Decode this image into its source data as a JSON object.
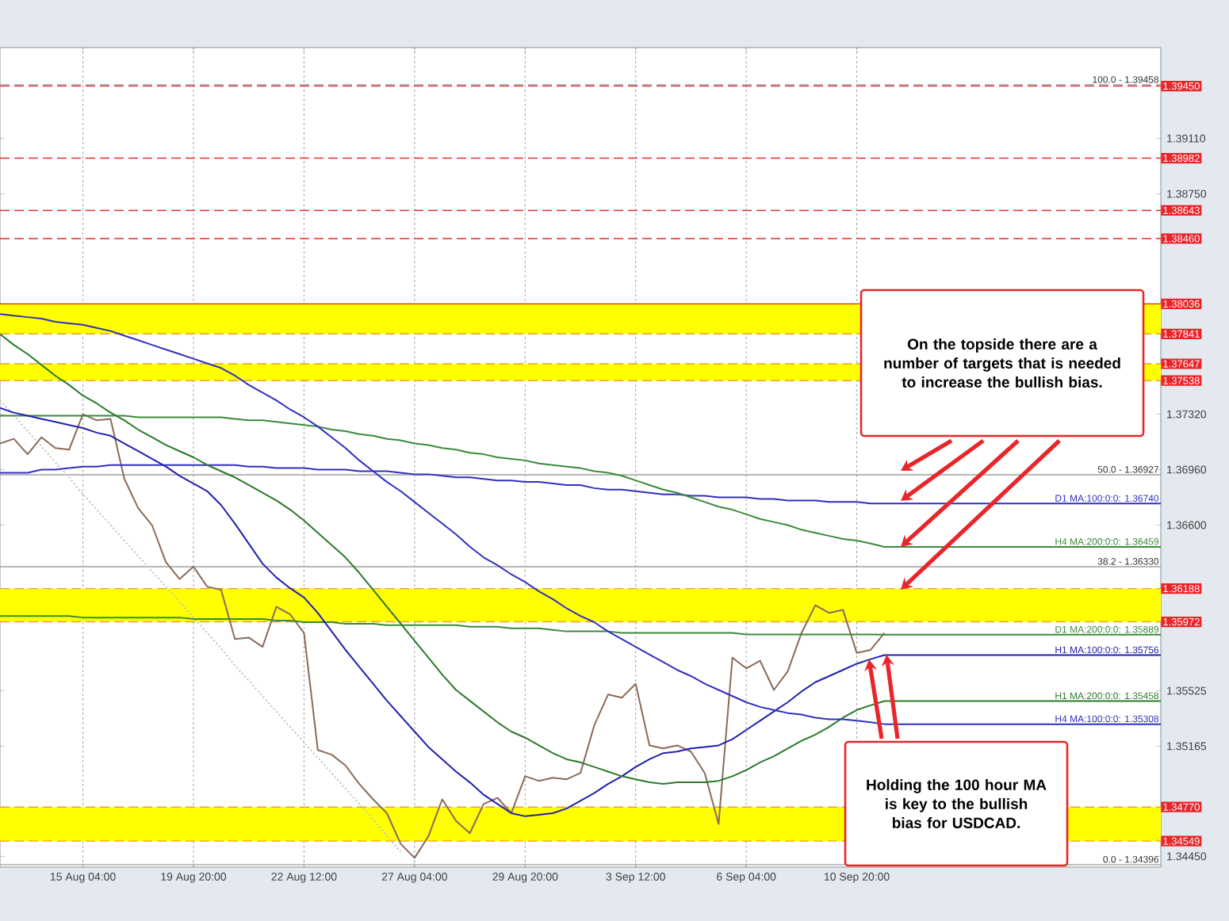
{
  "chart_data": {
    "type": "line",
    "categories": [
      null,
      null,
      null,
      null,
      null,
      null,
      "15 Aug 04:00",
      null,
      null,
      null,
      null,
      null,
      null,
      null,
      "19 Aug 20:00",
      null,
      null,
      null,
      null,
      null,
      null,
      null,
      "22 Aug 12:00",
      null,
      null,
      null,
      null,
      null,
      null,
      null,
      "27 Aug 04:00",
      null,
      null,
      null,
      null,
      null,
      null,
      null,
      "29 Aug 20:00",
      null,
      null,
      null,
      null,
      null,
      null,
      null,
      "3 Sep 12:00",
      null,
      null,
      null,
      null,
      null,
      null,
      null,
      "6 Sep 04:00",
      null,
      null,
      null,
      null,
      null,
      null,
      null,
      "10 Sep 20:00",
      null,
      null,
      null,
      null,
      null,
      null,
      null,
      null,
      null,
      null,
      null,
      null,
      null,
      null,
      null,
      null,
      null,
      null,
      null,
      null,
      null,
      null
    ],
    "ylim": [
      1.3438,
      1.397
    ],
    "yticks": [
      {
        "value": 1.3911,
        "label": "1.39110"
      },
      {
        "value": 1.3875,
        "label": "1.38750"
      },
      {
        "value": 1.3732,
        "label": "1.37320"
      },
      {
        "value": 1.3696,
        "label": "1.36960"
      },
      {
        "value": 1.366,
        "label": "1.36600"
      },
      {
        "value": 1.35525,
        "label": "1.35525"
      },
      {
        "value": 1.35165,
        "label": "1.35165"
      },
      {
        "value": 1.3445,
        "label": "1.34450"
      }
    ],
    "grid": "x",
    "bands": [
      {
        "axis": "y",
        "from": 1.37841,
        "to": 1.38036,
        "color": "#ffff00"
      },
      {
        "axis": "y",
        "from": 1.37538,
        "to": 1.37647,
        "color": "#ffff00"
      },
      {
        "axis": "y",
        "from": 1.35972,
        "to": 1.36188,
        "color": "#ffff00"
      },
      {
        "axis": "y",
        "from": 1.34549,
        "to": 1.3477,
        "color": "#ffff00"
      }
    ],
    "ref_lines": [
      {
        "axis": "y",
        "value": 1.3945,
        "label": "1.39450",
        "color": "#e03030",
        "line_style": "dashed"
      },
      {
        "axis": "y",
        "value": 1.38982,
        "label": "1.38982",
        "color": "#e03030",
        "line_style": "dashed"
      },
      {
        "axis": "y",
        "value": 1.38643,
        "label": "1.38643",
        "color": "#e03030",
        "line_style": "dashed"
      },
      {
        "axis": "y",
        "value": 1.3846,
        "label": "1.38460",
        "color": "#e03030",
        "line_style": "dashed"
      },
      {
        "axis": "y",
        "value": 1.38036,
        "label": "1.38036",
        "color": "#e02020",
        "line_style": "solid"
      },
      {
        "axis": "y",
        "value": 1.37841,
        "label": "1.37841",
        "color": "#e8a030",
        "line_style": "dashed"
      },
      {
        "axis": "y",
        "value": 1.37647,
        "label": "1.37647",
        "color": "#e8a030",
        "line_style": "dashed"
      },
      {
        "axis": "y",
        "value": 1.37538,
        "label": "1.37538",
        "color": "#e8a030",
        "line_style": "dashed"
      },
      {
        "axis": "y",
        "value": 1.36188,
        "label": "1.36188",
        "color": "#e8a030",
        "line_style": "dashed"
      },
      {
        "axis": "y",
        "value": 1.35972,
        "label": "1.35972",
        "color": "#e8a030",
        "line_style": "dashed"
      },
      {
        "axis": "y",
        "value": 1.3477,
        "label": "1.34770",
        "color": "#e8a030",
        "line_style": "dashed"
      },
      {
        "axis": "y",
        "value": 1.34549,
        "label": "1.34549",
        "color": "#e8a030",
        "line_style": "dashed"
      },
      {
        "axis": "y",
        "value": 1.39458,
        "color": "#a0a0a0",
        "line_style": "dashed"
      },
      {
        "axis": "y",
        "value": 1.36927,
        "color": "#a0a0a0",
        "line_style": "solid"
      },
      {
        "axis": "y",
        "value": 1.3633,
        "color": "#a0a0a0",
        "line_style": "solid"
      },
      {
        "axis": "y",
        "value": 1.34396,
        "color": "#a0a0a0",
        "line_style": "solid"
      }
    ],
    "series": [
      {
        "color": "#c0c0c0",
        "line_style": "dotted",
        "values": [
          1.3741,
          1.3731,
          1.3721,
          1.3711,
          1.3701,
          1.3691,
          1.368,
          1.367,
          1.366,
          1.365,
          1.364,
          1.363,
          1.362,
          1.361,
          1.36,
          1.359,
          1.358,
          1.3569,
          1.3559,
          1.3549,
          1.3539,
          1.3529,
          1.3519,
          1.3509,
          1.3499,
          1.3489,
          1.3479,
          1.3469,
          1.3458,
          1.3448,
          null,
          null,
          null,
          null,
          null,
          null,
          null,
          null,
          null,
          null,
          null,
          null,
          null,
          null,
          null,
          null,
          null,
          null,
          null,
          null,
          null,
          null,
          null,
          null,
          null,
          null,
          null,
          null,
          null,
          null,
          null,
          null,
          null,
          null,
          null,
          null,
          null,
          null,
          null,
          null,
          null,
          null,
          null,
          null,
          null,
          null,
          null,
          null,
          null,
          null,
          null,
          null,
          null,
          null,
          null
        ]
      },
      {
        "color": "#8a6a5a",
        "values": [
          1.3713,
          1.3716,
          1.3706,
          1.3717,
          1.371,
          1.3709,
          1.3732,
          1.3728,
          1.3729,
          1.369,
          1.3671,
          1.366,
          1.3636,
          1.3625,
          1.3633,
          1.362,
          1.3618,
          1.3586,
          1.3587,
          1.3581,
          1.3607,
          1.3602,
          1.359,
          1.3514,
          1.3511,
          1.3504,
          1.3492,
          1.3482,
          1.3473,
          1.3453,
          1.3444,
          1.3458,
          1.3482,
          1.3468,
          1.346,
          1.3479,
          1.3483,
          1.3473,
          1.3497,
          1.3494,
          1.3496,
          1.3495,
          1.3499,
          1.353,
          1.355,
          1.3548,
          1.3557,
          1.3517,
          1.3515,
          1.3517,
          1.3513,
          1.3499,
          1.3466,
          1.3574,
          1.3567,
          1.3572,
          1.3553,
          1.3565,
          1.359,
          1.3608,
          1.3603,
          1.3605,
          1.3577,
          1.3579,
          1.359,
          null,
          null,
          null,
          null,
          null,
          null,
          null,
          null,
          null,
          null,
          null,
          null,
          null,
          null,
          null,
          null,
          null,
          null,
          null,
          null
        ]
      },
      {
        "name": "D1 MA:100:0:0: 1.36740",
        "color": "#3030c0",
        "values": [
          1.3694,
          1.3694,
          1.3694,
          1.3696,
          1.3696,
          1.3697,
          1.3698,
          1.3698,
          1.3699,
          1.3699,
          1.3699,
          1.3699,
          1.3699,
          1.3699,
          1.3699,
          1.3699,
          1.3699,
          1.3699,
          1.3698,
          1.3698,
          1.3697,
          1.3697,
          1.3697,
          1.3696,
          1.3696,
          1.3696,
          1.3695,
          1.3695,
          1.3695,
          1.3694,
          1.3693,
          1.3693,
          1.3692,
          1.3691,
          1.3691,
          1.369,
          1.3689,
          1.3689,
          1.3688,
          1.3688,
          1.3687,
          1.3686,
          1.3686,
          1.3684,
          1.3683,
          1.3683,
          1.3682,
          1.3681,
          1.368,
          1.368,
          1.3679,
          1.3679,
          1.3678,
          1.3678,
          1.3678,
          1.3677,
          1.3677,
          1.3676,
          1.3676,
          1.3676,
          1.3675,
          1.3675,
          1.3675,
          1.3674,
          1.3674,
          1.3674,
          1.3674,
          1.3674,
          1.3674,
          1.3674,
          1.3674,
          1.3674,
          1.3674,
          1.3674,
          1.3674,
          1.3674,
          1.3674,
          1.3674,
          1.3674,
          1.3674,
          1.3674,
          1.3674,
          1.3674,
          1.3674,
          1.3674
        ]
      },
      {
        "name": "H4 MA:200:0:0: 1.36459",
        "color": "#3a8a3a",
        "values": [
          1.3731,
          1.3731,
          1.3731,
          1.3731,
          1.3731,
          1.3731,
          1.3731,
          1.3731,
          1.3731,
          1.3731,
          1.373,
          1.373,
          1.373,
          1.373,
          1.373,
          1.373,
          1.373,
          1.3729,
          1.3728,
          1.3728,
          1.3727,
          1.3726,
          1.3725,
          1.3724,
          1.3722,
          1.3721,
          1.3719,
          1.3718,
          1.3716,
          1.3715,
          1.3713,
          1.3712,
          1.371,
          1.3709,
          1.3707,
          1.3706,
          1.3704,
          1.3703,
          1.3702,
          1.37,
          1.3699,
          1.3698,
          1.3697,
          1.3695,
          1.3694,
          1.3692,
          1.3689,
          1.3686,
          1.3683,
          1.3681,
          1.3678,
          1.3675,
          1.3672,
          1.367,
          1.3667,
          1.3664,
          1.3662,
          1.366,
          1.3657,
          1.3655,
          1.3653,
          1.3651,
          1.365,
          1.3648,
          1.36459,
          1.36459,
          1.36459,
          1.36459,
          1.36459,
          1.36459,
          1.36459,
          1.36459,
          1.36459,
          1.36459,
          1.36459,
          1.36459,
          1.36459,
          1.36459,
          1.36459,
          1.36459,
          1.36459,
          1.36459,
          1.36459,
          1.36459,
          1.36459
        ]
      },
      {
        "name": "D1 MA:200:0:0: 1.35889",
        "color": "#3a8a3a",
        "values": [
          1.3601,
          1.3601,
          1.3601,
          1.3601,
          1.3601,
          1.3601,
          1.36,
          1.36,
          1.36,
          1.36,
          1.36,
          1.36,
          1.36,
          1.36,
          1.3599,
          1.3599,
          1.3599,
          1.3599,
          1.3599,
          1.3599,
          1.3598,
          1.3598,
          1.3597,
          1.3597,
          1.3597,
          1.3596,
          1.3596,
          1.3596,
          1.3595,
          1.3595,
          1.3595,
          1.3595,
          1.3595,
          1.3595,
          1.3594,
          1.3594,
          1.3594,
          1.3593,
          1.3593,
          1.3593,
          1.3592,
          1.3591,
          1.3591,
          1.3591,
          1.3591,
          1.359,
          1.359,
          1.359,
          1.359,
          1.359,
          1.359,
          1.359,
          1.359,
          1.359,
          1.3589,
          1.3589,
          1.3589,
          1.3589,
          1.3589,
          1.3589,
          1.3589,
          1.3589,
          1.3589,
          1.3589,
          1.35889,
          1.35889,
          1.35889,
          1.35889,
          1.35889,
          1.35889,
          1.35889,
          1.35889,
          1.35889,
          1.35889,
          1.35889,
          1.35889,
          1.35889,
          1.35889,
          1.35889,
          1.35889,
          1.35889,
          1.35889,
          1.35889,
          1.35889,
          1.35889
        ]
      },
      {
        "name": "H1 MA:100:0:0: 1.35756",
        "color": "#2020b0",
        "values": [
          1.3736,
          1.3733,
          1.3731,
          1.3729,
          1.3727,
          1.3725,
          1.3723,
          1.372,
          1.3718,
          1.3713,
          1.3708,
          1.3703,
          1.3698,
          1.3692,
          1.3687,
          1.3682,
          1.3673,
          1.3661,
          1.3648,
          1.3635,
          1.3626,
          1.3619,
          1.3613,
          1.3603,
          1.3591,
          1.3579,
          1.3568,
          1.3557,
          1.3546,
          1.3536,
          1.3526,
          1.3516,
          1.3508,
          1.35,
          1.3493,
          1.3485,
          1.3479,
          1.3473,
          1.3471,
          1.3472,
          1.3473,
          1.3476,
          1.3481,
          1.3486,
          1.3492,
          1.3497,
          1.3503,
          1.3508,
          1.3512,
          1.3513,
          1.3515,
          1.3516,
          1.3517,
          1.3521,
          1.3527,
          1.3533,
          1.3539,
          1.3545,
          1.3552,
          1.3558,
          1.3562,
          1.3566,
          1.357,
          1.3573,
          1.35756,
          1.35756,
          1.35756,
          1.35756,
          1.35756,
          1.35756,
          1.35756,
          1.35756,
          1.35756,
          1.35756,
          1.35756,
          1.35756,
          1.35756,
          1.35756,
          1.35756,
          1.35756,
          1.35756,
          1.35756,
          1.35756,
          1.35756,
          1.35756
        ]
      },
      {
        "name": "H1 MA:200:0:0: 1.35458",
        "color": "#2a7a2a",
        "values": [
          1.3784,
          1.3777,
          1.3771,
          1.3764,
          1.3757,
          1.3751,
          1.3744,
          1.3739,
          1.3733,
          1.3728,
          1.3722,
          1.3717,
          1.3712,
          1.3708,
          1.3704,
          1.3699,
          1.3695,
          1.3691,
          1.3686,
          1.3681,
          1.3676,
          1.367,
          1.3663,
          1.3655,
          1.3647,
          1.3639,
          1.3629,
          1.3618,
          1.3607,
          1.3596,
          1.3585,
          1.3574,
          1.3563,
          1.3553,
          1.3546,
          1.3539,
          1.3532,
          1.3526,
          1.3522,
          1.3517,
          1.3512,
          1.3508,
          1.3506,
          1.3503,
          1.35,
          1.3497,
          1.3495,
          1.3493,
          1.3492,
          1.3493,
          1.3493,
          1.3493,
          1.3494,
          1.3497,
          1.3501,
          1.3506,
          1.351,
          1.3515,
          1.352,
          1.3524,
          1.3529,
          1.3535,
          1.354,
          1.3543,
          1.35458,
          1.35458,
          1.35458,
          1.35458,
          1.35458,
          1.35458,
          1.35458,
          1.35458,
          1.35458,
          1.35458,
          1.35458,
          1.35458,
          1.35458,
          1.35458,
          1.35458,
          1.35458,
          1.35458,
          1.35458,
          1.35458,
          1.35458,
          1.35458
        ]
      },
      {
        "name": "H4 MA:100:0:0: 1.35308",
        "color": "#3030c0",
        "values": [
          1.3797,
          1.3796,
          1.3795,
          1.3794,
          1.3792,
          1.3791,
          1.379,
          1.3788,
          1.3786,
          1.3783,
          1.378,
          1.3777,
          1.3774,
          1.3771,
          1.3768,
          1.3765,
          1.3762,
          1.3757,
          1.3751,
          1.3746,
          1.3741,
          1.3735,
          1.373,
          1.3724,
          1.3717,
          1.371,
          1.3702,
          1.3695,
          1.3688,
          1.3682,
          1.3675,
          1.3668,
          1.3661,
          1.3654,
          1.3646,
          1.3639,
          1.3634,
          1.3628,
          1.3623,
          1.3617,
          1.3612,
          1.3606,
          1.3601,
          1.3597,
          1.3591,
          1.3586,
          1.3581,
          1.3576,
          1.3571,
          1.3566,
          1.3562,
          1.3557,
          1.3553,
          1.3549,
          1.3545,
          1.3542,
          1.354,
          1.3538,
          1.3537,
          1.3535,
          1.3534,
          1.3534,
          1.3533,
          1.3532,
          1.35308,
          1.35308,
          1.35308,
          1.35308,
          1.35308,
          1.35308,
          1.35308,
          1.35308,
          1.35308,
          1.35308,
          1.35308,
          1.35308,
          1.35308,
          1.35308,
          1.35308,
          1.35308,
          1.35308,
          1.35308,
          1.35308,
          1.35308,
          1.35308
        ]
      }
    ],
    "annotations": [
      "On the topside there are a number of targets that is needed to increase the bullish bias.",
      "Holding the 100 hour MA is key to the bullish bias for USDCAD.",
      {
        "text": "100.0 - 1.39458",
        "y": 1.39458
      },
      {
        "text": "50.0 - 1.36927",
        "y": 1.36927
      },
      {
        "text": "38.2 - 1.36330",
        "y": 1.3633
      },
      {
        "text": "0.0 - 1.34396",
        "y": 1.34396
      }
    ]
  }
}
